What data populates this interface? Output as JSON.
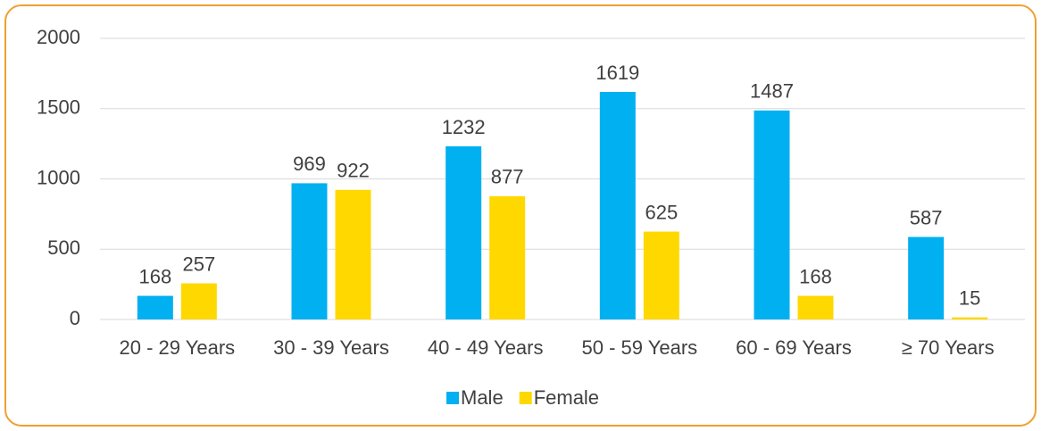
{
  "chart_data": {
    "type": "bar",
    "categories": [
      "20 - 29 Years",
      "30 - 39 Years",
      "40 - 49 Years",
      "50 - 59 Years",
      "60 - 69 Years",
      "≥ 70 Years"
    ],
    "series": [
      {
        "name": "Male",
        "color": "#00b0f0",
        "values": [
          168,
          969,
          1232,
          1619,
          1487,
          587
        ]
      },
      {
        "name": "Female",
        "color": "#ffd800",
        "values": [
          257,
          922,
          877,
          625,
          168,
          15
        ]
      }
    ],
    "ylim": [
      0,
      2000
    ],
    "yticks": [
      0,
      500,
      1000,
      1500,
      2000
    ],
    "grid": true,
    "legend": "bottom"
  }
}
